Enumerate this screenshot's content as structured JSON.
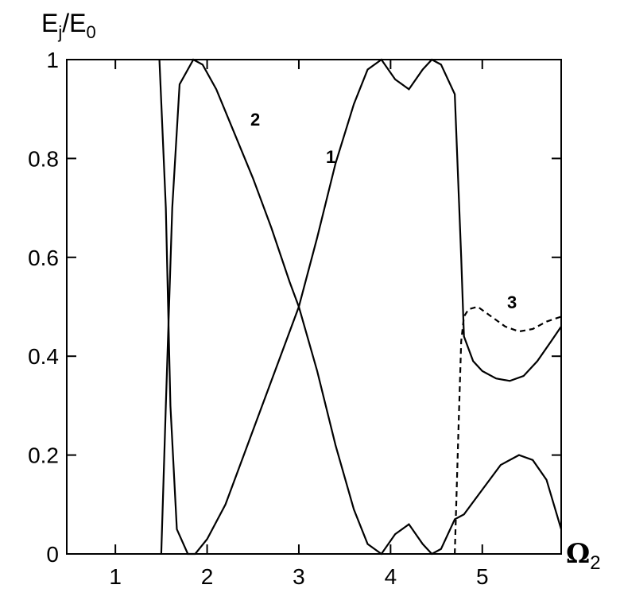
{
  "chart_data": {
    "type": "line",
    "y_label": {
      "base": "E",
      "sub": "j",
      "mid": "/E",
      "sub2": "0"
    },
    "x_label": {
      "base": "Ω",
      "sub": "2"
    },
    "xlim": [
      0.47,
      5.86
    ],
    "xticks": [
      1,
      2,
      3,
      4,
      5
    ],
    "ylim": [
      0,
      1
    ],
    "yticks": [
      0,
      0.2,
      0.4,
      0.6,
      0.8,
      1
    ],
    "series": [
      {
        "name": "1",
        "color": "#000000",
        "line_style": "solid",
        "x": [
          1.48,
          1.55,
          1.6,
          1.67,
          1.79,
          1.87,
          2.0,
          2.2,
          2.4,
          2.6,
          2.8,
          3.0,
          3.2,
          3.4,
          3.6,
          3.75,
          3.9,
          4.05,
          4.2,
          4.35,
          4.45,
          4.55,
          4.7,
          4.77,
          4.8,
          4.9,
          5.0,
          5.15,
          5.3,
          5.45,
          5.6,
          5.75,
          5.86
        ],
        "values": [
          1,
          0.7,
          0.3,
          0.05,
          0,
          0,
          0.03,
          0.1,
          0.2,
          0.3,
          0.4,
          0.5,
          0.64,
          0.79,
          0.91,
          0.98,
          1,
          0.96,
          0.94,
          0.98,
          1,
          0.99,
          0.93,
          0.6,
          0.44,
          0.39,
          0.37,
          0.355,
          0.35,
          0.36,
          0.39,
          0.43,
          0.46
        ]
      },
      {
        "name": "2",
        "color": "#000000",
        "line_style": "solid",
        "x": [
          1.5,
          1.55,
          1.62,
          1.7,
          1.85,
          1.95,
          2.1,
          2.3,
          2.5,
          2.7,
          2.9,
          3.0,
          3.2,
          3.4,
          3.6,
          3.75,
          3.9,
          4.05,
          4.2,
          4.35,
          4.45,
          4.55,
          4.7,
          4.8,
          5.0,
          5.2,
          5.4,
          5.55,
          5.7,
          5.86
        ],
        "values": [
          0,
          0.3,
          0.7,
          0.95,
          1,
          0.99,
          0.94,
          0.85,
          0.76,
          0.66,
          0.55,
          0.5,
          0.37,
          0.22,
          0.09,
          0.02,
          0,
          0.04,
          0.06,
          0.02,
          0,
          0.01,
          0.07,
          0.08,
          0.13,
          0.18,
          0.2,
          0.19,
          0.15,
          0.05
        ]
      },
      {
        "name": "3",
        "color": "#000000",
        "line_style": "dashed",
        "x": [
          4.7,
          4.74,
          4.77,
          4.8,
          4.85,
          4.95,
          5.1,
          5.25,
          5.4,
          5.55,
          5.7,
          5.86
        ],
        "values": [
          0,
          0.25,
          0.43,
          0.48,
          0.495,
          0.5,
          0.48,
          0.46,
          0.45,
          0.455,
          0.47,
          0.48
        ]
      }
    ]
  }
}
